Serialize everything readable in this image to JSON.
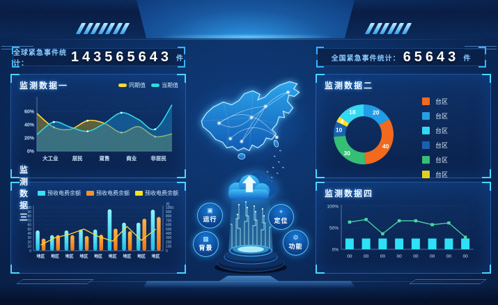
{
  "page": {
    "background": "#0a2c60",
    "accent": "#35c8ff"
  },
  "counters": {
    "left": {
      "label": "全球紧急事件统计：",
      "value": "143565643",
      "unit": "件"
    },
    "right": {
      "label": "全国紧急事件统计：",
      "value": "65643",
      "unit": "件"
    }
  },
  "panels": {
    "p1": {
      "title": "监测数据一"
    },
    "p2": {
      "title": "监测数据二"
    },
    "p3": {
      "title": "监测数据三"
    },
    "p4": {
      "title": "监测数据四"
    }
  },
  "center": {
    "badges": [
      {
        "label": "运行",
        "icon": "run-icon",
        "glyph": "▣"
      },
      {
        "label": "定位",
        "icon": "locate-icon",
        "glyph": "⌖"
      },
      {
        "label": "背景",
        "icon": "background-icon",
        "glyph": "▦"
      },
      {
        "label": "功能",
        "icon": "function-icon",
        "glyph": "⚙"
      }
    ]
  },
  "chart_data": [
    {
      "id": "chart1",
      "type": "area",
      "title": "监测数据一",
      "legend": [
        {
          "name": "同期值",
          "color": "#ffd832"
        },
        {
          "name": "当期值",
          "color": "#2fd9e0"
        }
      ],
      "legend_position": "top-right",
      "categories": [
        "大工业",
        "居民",
        "趸售",
        "商业",
        "非居民"
      ],
      "yticks": [
        "0%",
        "20%",
        "40%",
        "60%"
      ],
      "ylim": [
        0,
        80
      ],
      "grid": true,
      "series": [
        {
          "name": "同期值",
          "color": "#ffd832",
          "fill": "rgba(186,160,24,0.45)",
          "values": [
            57,
            36,
            33,
            46,
            42,
            28,
            37,
            22,
            26
          ]
        },
        {
          "name": "当期值",
          "color": "#2fd9e0",
          "fill": "rgba(24,130,196,0.5)",
          "values": [
            25,
            44,
            36,
            30,
            42,
            58,
            48,
            33,
            70
          ]
        }
      ]
    },
    {
      "id": "chart2",
      "type": "donut",
      "title": "监测数据二",
      "slices": [
        {
          "value": 20,
          "color": "#1f9ce8"
        },
        {
          "value": 40,
          "color": "#f2691d"
        },
        {
          "value": 30,
          "color": "#33bf74"
        },
        {
          "value": 10,
          "color": "#1a5fb0"
        },
        {
          "value": 4,
          "color": "#ffe11a"
        },
        {
          "value": 18,
          "color": "#31d8f2"
        }
      ],
      "legend_position": "right",
      "legend": [
        {
          "name": "台区",
          "color": "#f2691d"
        },
        {
          "name": "台区",
          "color": "#259fe0"
        },
        {
          "name": "台区",
          "color": "#31d8f2"
        },
        {
          "name": "台区",
          "color": "#1a5fb0"
        },
        {
          "name": "台区",
          "color": "#33bf74"
        },
        {
          "name": "台区",
          "color": "#e3cf1f"
        }
      ]
    },
    {
      "id": "chart3",
      "type": "bar-line",
      "title": "监测数据三",
      "legend": [
        {
          "name": "预收电费余额",
          "color": "#35e0f5"
        },
        {
          "name": "预收电费余额",
          "color": "#f5912b"
        },
        {
          "name": "预收电费余额",
          "color": "#ffe11a"
        }
      ],
      "categories": [
        "地区",
        "地区",
        "地区",
        "地区",
        "地区",
        "地区",
        "地区",
        "地区",
        "地区"
      ],
      "left_axis": {
        "ticks": [
          0,
          10,
          20,
          30,
          40,
          50,
          60,
          70,
          80,
          90,
          100
        ],
        "lim": [
          0,
          100
        ]
      },
      "right_axis": {
        "ticks": [
          0,
          100,
          200,
          300,
          400,
          500,
          600,
          700,
          800,
          900,
          1000
        ],
        "lim": [
          0,
          1000
        ],
        "unit": "元"
      },
      "grid": true,
      "bar_series": [
        {
          "name": "预收电费余额",
          "color": "#35e0f5",
          "axis": "left",
          "values": [
            47,
            36,
            47,
            49,
            49,
            96,
            65,
            65,
            95
          ]
        },
        {
          "name": "预收电费余额",
          "color": "#f5912b",
          "axis": "left",
          "values": [
            28,
            36,
            36,
            34,
            37,
            51,
            45,
            74,
            78
          ]
        }
      ],
      "line_series": {
        "name": "预收电费余额",
        "color": "#ffd832",
        "axis": "right",
        "values": [
          130,
          300,
          380,
          500,
          330,
          220,
          560,
          240,
          500
        ]
      }
    },
    {
      "id": "chart4",
      "type": "bar-line",
      "title": "监测数据四",
      "categories": [
        "00",
        "00",
        "00",
        "00",
        "00",
        "00",
        "00",
        "00"
      ],
      "yticks": [
        "0%",
        "50%",
        "100%"
      ],
      "ylim": [
        0,
        100
      ],
      "bar_series": [
        {
          "name": "bars",
          "color": "#2ce0f7",
          "values": [
            25,
            25,
            25,
            25,
            25,
            25,
            25,
            25
          ]
        }
      ],
      "line_series": {
        "name": "line",
        "color": "#4bd6a3",
        "marker": "square",
        "values": [
          63,
          69,
          36,
          66,
          66,
          57,
          61,
          28
        ]
      }
    }
  ]
}
